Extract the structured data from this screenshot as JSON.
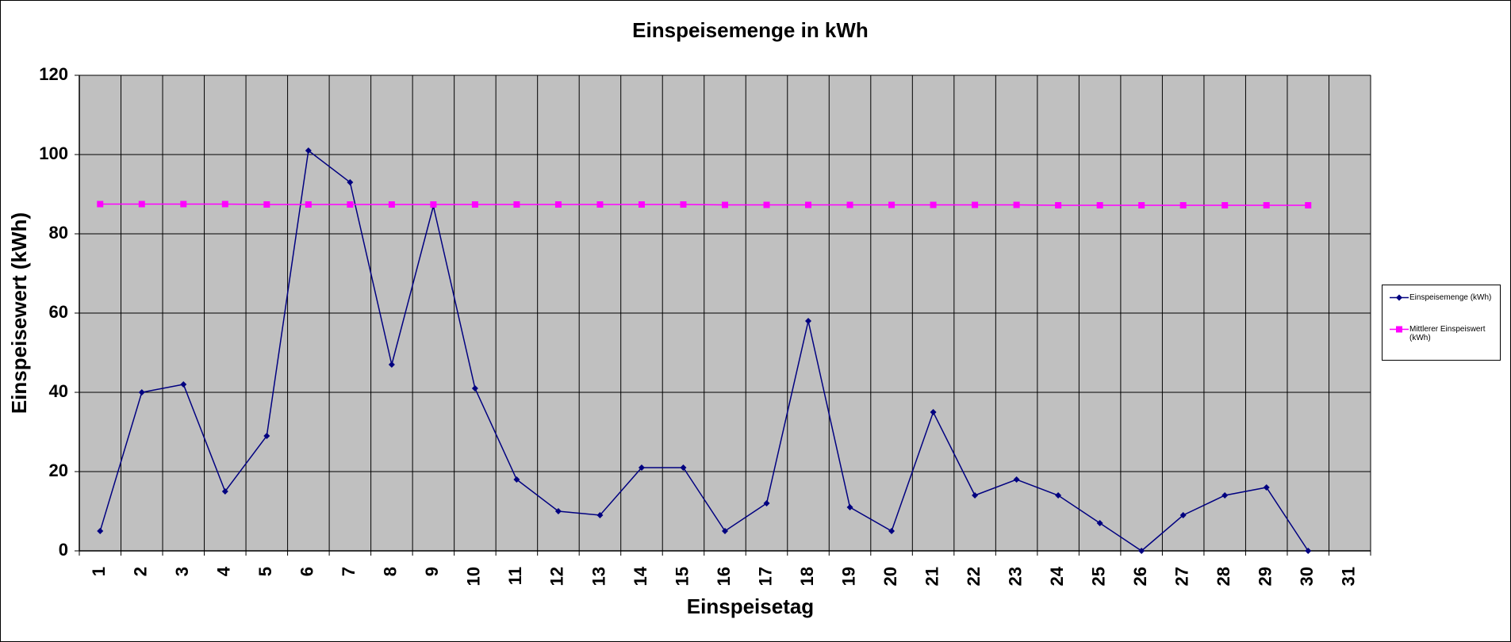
{
  "chart_data": {
    "type": "line",
    "title": "Einspeisemenge in kWh",
    "x_label": "Einspeisetag",
    "y_label": "Einspeisewert  (kWh)",
    "categories": [
      "1",
      "2",
      "3",
      "4",
      "5",
      "6",
      "7",
      "8",
      "9",
      "10",
      "11",
      "12",
      "13",
      "14",
      "15",
      "16",
      "17",
      "18",
      "19",
      "20",
      "21",
      "22",
      "23",
      "24",
      "25",
      "26",
      "27",
      "28",
      "29",
      "30",
      "31"
    ],
    "series": [
      {
        "name": "Einspeisemenge (kWh)",
        "color": "#000080",
        "marker": "diamond",
        "values": [
          5,
          40,
          42,
          15,
          29,
          101,
          93,
          47,
          87,
          41,
          18,
          10,
          9,
          21,
          21,
          5,
          12,
          58,
          11,
          5,
          35,
          14,
          18,
          14,
          7,
          0,
          9,
          14,
          16,
          0,
          null
        ]
      },
      {
        "name": "Mittlerer Einspeiswert (kWh)",
        "color": "#ff00ff",
        "marker": "square",
        "values": [
          87.5,
          87.5,
          87.5,
          87.5,
          87.4,
          87.4,
          87.4,
          87.4,
          87.4,
          87.4,
          87.4,
          87.4,
          87.4,
          87.4,
          87.4,
          87.3,
          87.3,
          87.3,
          87.3,
          87.3,
          87.3,
          87.3,
          87.3,
          87.2,
          87.2,
          87.2,
          87.2,
          87.2,
          87.2,
          87.2,
          null
        ]
      }
    ],
    "ylim": [
      0,
      120
    ],
    "yticks": [
      0,
      20,
      40,
      60,
      80,
      100,
      120
    ],
    "grid": true,
    "legend": "right"
  }
}
